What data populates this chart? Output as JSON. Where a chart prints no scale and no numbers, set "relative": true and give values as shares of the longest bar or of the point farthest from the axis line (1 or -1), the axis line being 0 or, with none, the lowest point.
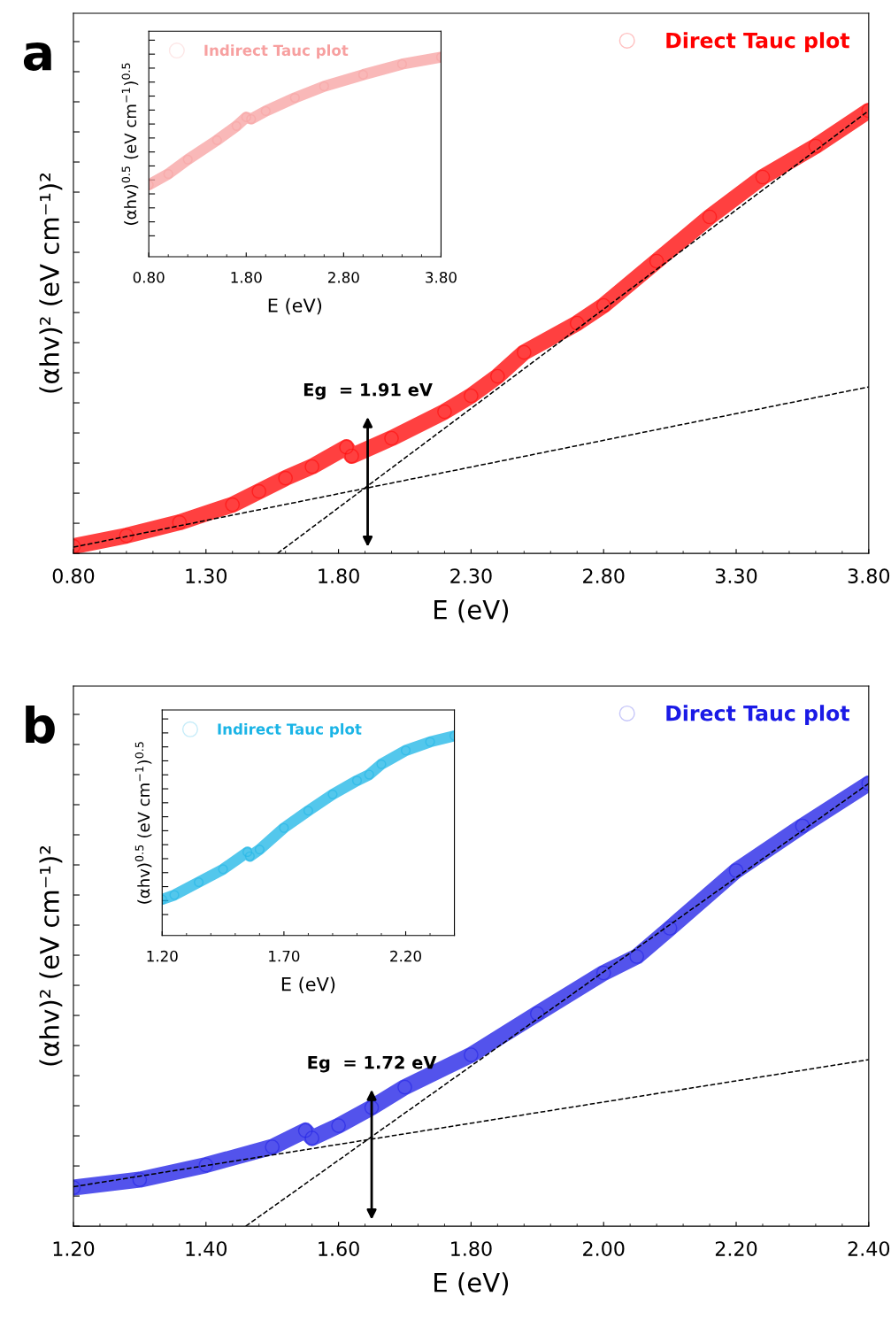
{
  "chart_data": [
    {
      "type": "line",
      "title": "a",
      "relative": true,
      "xlabel": "E (eV)",
      "ylabel": "(αhv)² (eV cm⁻¹)²",
      "xlim": [
        0.8,
        3.8
      ],
      "xticks": [
        {
          "value": 0.8,
          "label": "0.80"
        },
        {
          "value": 1.3,
          "label": "1.30"
        },
        {
          "value": 1.8,
          "label": "1.80"
        },
        {
          "value": 2.3,
          "label": "2.30"
        },
        {
          "value": 2.8,
          "label": "2.80"
        },
        {
          "value": 3.3,
          "label": "3.30"
        },
        {
          "value": 3.8,
          "label": "3.80"
        }
      ],
      "tick_labels": "x",
      "legend": "top right",
      "marker": "circle",
      "grid": false,
      "annotations": [
        {
          "text": "Eg  = 1.91 eV",
          "x": 1.91,
          "y": 0.15
        }
      ],
      "series": [
        {
          "name": "Direct Tauc plot",
          "color": "#ff0000",
          "x": [
            0.8,
            1.0,
            1.2,
            1.4,
            1.5,
            1.6,
            1.7,
            1.83,
            1.85,
            2.0,
            2.2,
            2.3,
            2.4,
            2.5,
            2.7,
            2.8,
            3.0,
            3.2,
            3.4,
            3.6,
            3.8
          ],
          "values": [
            0.016,
            0.04,
            0.07,
            0.11,
            0.14,
            0.17,
            0.196,
            0.24,
            0.22,
            0.26,
            0.32,
            0.356,
            0.4,
            0.454,
            0.52,
            0.56,
            0.66,
            0.76,
            0.85,
            0.92,
            1.0
          ]
        },
        {
          "type": "line",
          "color": "#000000",
          "line_style": "dashed",
          "marker": "none",
          "x": [
            1.57,
            3.8
          ],
          "values": [
            0.0,
            1.0
          ]
        },
        {
          "type": "line",
          "color": "#000000",
          "line_style": "dashed",
          "marker": "none",
          "x": [
            0.8,
            3.8
          ],
          "values": [
            0.014,
            0.376
          ]
        }
      ]
    },
    {
      "type": "line",
      "relative": true,
      "xlabel": "E (eV)",
      "ylabel": "(αhv)$^{0.5}$ (eV cm$^{−1}$)$^{0.5}$",
      "xlim": [
        0.8,
        3.8
      ],
      "xticks": [
        {
          "value": 0.8,
          "label": "0.80"
        },
        {
          "value": 1.8,
          "label": "1.80"
        },
        {
          "value": 2.8,
          "label": "2.80"
        },
        {
          "value": 3.8,
          "label": "3.80"
        }
      ],
      "tick_labels": "x",
      "legend": "top left",
      "marker": "circle",
      "grid": false,
      "series": [
        {
          "name": "Indirect Tauc plot",
          "color": "#f7a0a0",
          "x": [
            0.8,
            1.0,
            1.2,
            1.5,
            1.7,
            1.8,
            1.85,
            2.0,
            2.3,
            2.6,
            3.0,
            3.4,
            3.8
          ],
          "values": [
            0.36,
            0.415,
            0.487,
            0.584,
            0.655,
            0.699,
            0.69,
            0.73,
            0.796,
            0.854,
            0.912,
            0.965,
            1.0
          ]
        }
      ]
    },
    {
      "type": "line",
      "title": "b",
      "relative": true,
      "xlabel": "E (eV)",
      "ylabel": "(αhv)² (eV cm⁻¹)²",
      "xlim": [
        1.2,
        2.4
      ],
      "xticks": [
        {
          "value": 1.2,
          "label": "1.20"
        },
        {
          "value": 1.4,
          "label": "1.40"
        },
        {
          "value": 1.6,
          "label": "1.60"
        },
        {
          "value": 1.8,
          "label": "1.80"
        },
        {
          "value": 2.0,
          "label": "2.00"
        },
        {
          "value": 2.2,
          "label": "2.20"
        },
        {
          "value": 2.4,
          "label": "2.40"
        }
      ],
      "tick_labels": "x",
      "legend": "top right",
      "marker": "circle",
      "grid": false,
      "annotations": [
        {
          "text": "Eg  = 1.72 eV",
          "x": 1.65,
          "y": 0.2
        }
      ],
      "series": [
        {
          "name": "Direct Tauc plot",
          "color": "#1a1ae6",
          "x": [
            1.2,
            1.3,
            1.4,
            1.5,
            1.55,
            1.56,
            1.6,
            1.65,
            1.7,
            1.8,
            1.9,
            2.0,
            2.05,
            2.1,
            2.2,
            2.3,
            2.4
          ],
          "values": [
            0.087,
            0.105,
            0.138,
            0.179,
            0.216,
            0.199,
            0.227,
            0.268,
            0.314,
            0.387,
            0.48,
            0.572,
            0.609,
            0.673,
            0.803,
            0.904,
            1.0
          ]
        },
        {
          "type": "line",
          "color": "#000000",
          "line_style": "dashed",
          "marker": "none",
          "x": [
            1.46,
            2.4
          ],
          "values": [
            0.0,
            1.0
          ]
        },
        {
          "type": "line",
          "color": "#000000",
          "line_style": "dashed",
          "marker": "none",
          "x": [
            1.2,
            2.4
          ],
          "values": [
            0.089,
            0.376
          ]
        }
      ]
    },
    {
      "type": "line",
      "relative": true,
      "xlabel": "E (eV)",
      "ylabel": "(αhv)$^{0.5}$ (eV cm$^{−1}$)$^{0.5}$",
      "xlim": [
        1.2,
        2.4
      ],
      "xticks": [
        {
          "value": 1.2,
          "label": "1.20"
        },
        {
          "value": 1.7,
          "label": "1.70"
        },
        {
          "value": 2.2,
          "label": "2.20"
        }
      ],
      "tick_labels": "x",
      "legend": "top left",
      "marker": "circle",
      "grid": false,
      "series": [
        {
          "name": "Indirect Tauc plot",
          "color": "#1ab4e6",
          "x": [
            1.2,
            1.25,
            1.35,
            1.45,
            1.55,
            1.56,
            1.6,
            1.7,
            1.8,
            1.9,
            2.0,
            2.05,
            2.1,
            2.2,
            2.3,
            2.4
          ],
          "values": [
            0.181,
            0.203,
            0.267,
            0.332,
            0.418,
            0.397,
            0.431,
            0.539,
            0.625,
            0.707,
            0.776,
            0.806,
            0.858,
            0.927,
            0.97,
            1.0
          ]
        }
      ]
    }
  ]
}
